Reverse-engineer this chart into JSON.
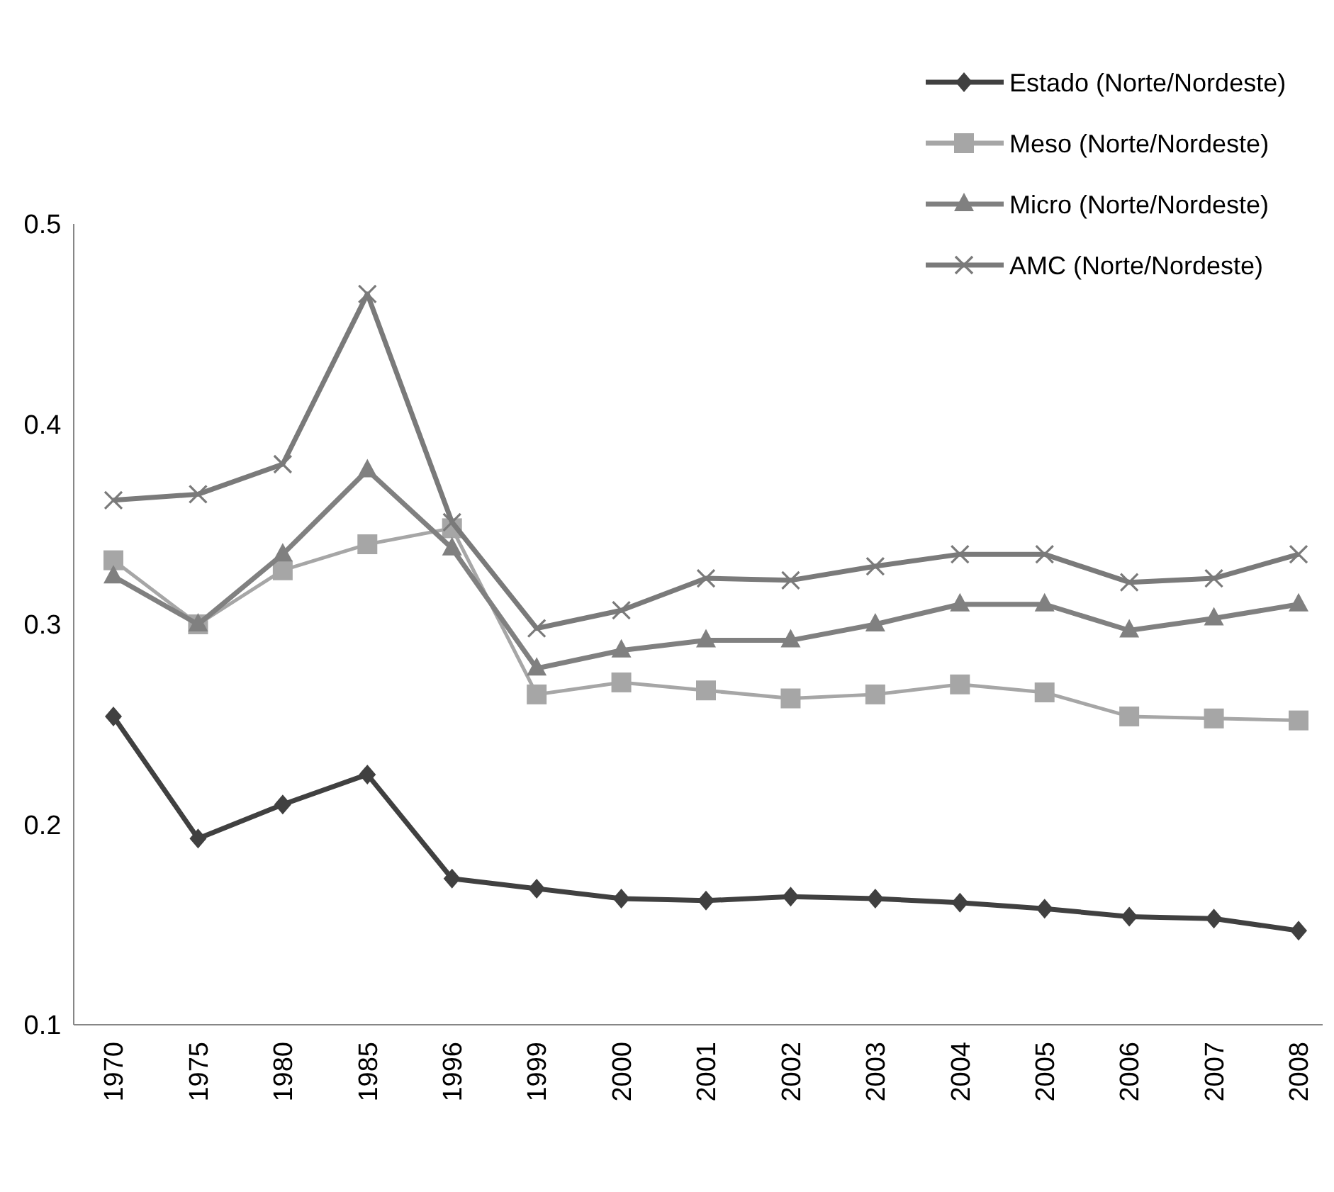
{
  "chart_data": {
    "type": "line",
    "categories": [
      "1970",
      "1975",
      "1980",
      "1985",
      "1996",
      "1999",
      "2000",
      "2001",
      "2002",
      "2003",
      "2004",
      "2005",
      "2006",
      "2007",
      "2008"
    ],
    "series": [
      {
        "name": "Estado (Norte/Nordeste)",
        "color": "#404040",
        "marker": "diamond",
        "values": [
          0.254,
          0.193,
          0.21,
          0.225,
          0.173,
          0.168,
          0.163,
          0.162,
          0.164,
          0.163,
          0.161,
          0.158,
          0.154,
          0.153,
          0.147
        ]
      },
      {
        "name": "Meso (Norte/Nordeste)",
        "color": "#a6a6a6",
        "marker": "square",
        "values": [
          0.332,
          0.3,
          0.327,
          0.34,
          0.348,
          0.265,
          0.271,
          0.267,
          0.263,
          0.265,
          0.27,
          0.266,
          0.254,
          0.253,
          0.252
        ]
      },
      {
        "name": "Micro (Norte/Nordeste)",
        "color": "#808080",
        "marker": "triangle",
        "values": [
          0.324,
          0.3,
          0.335,
          0.377,
          0.338,
          0.278,
          0.287,
          0.292,
          0.292,
          0.3,
          0.31,
          0.31,
          0.297,
          0.303,
          0.31
        ]
      },
      {
        "name": "AMC (Norte/Nordeste)",
        "color": "#7a7a7a",
        "marker": "cross",
        "values": [
          0.362,
          0.365,
          0.38,
          0.465,
          0.351,
          0.298,
          0.307,
          0.323,
          0.322,
          0.329,
          0.335,
          0.335,
          0.321,
          0.323,
          0.335
        ]
      }
    ],
    "ylim": [
      0.1,
      0.5
    ],
    "yticks": [
      0.1,
      0.2,
      0.3,
      0.4,
      0.5
    ],
    "grid": false,
    "legend": "top right"
  }
}
